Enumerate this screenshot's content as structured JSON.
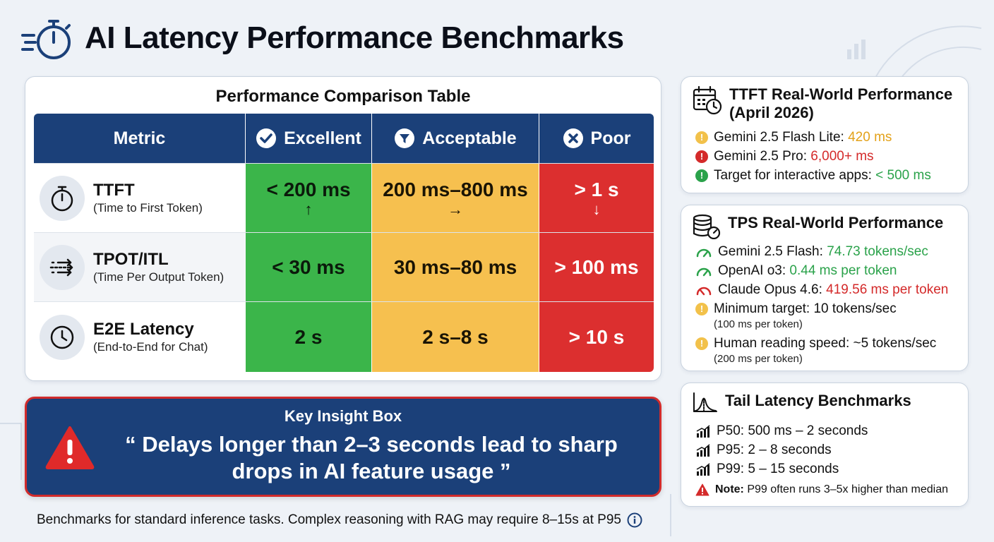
{
  "header": {
    "title": "AI Latency Performance Benchmarks",
    "icon": "stopwatch-icon"
  },
  "table": {
    "title": "Performance Comparison Table",
    "headers": {
      "metric": "Metric",
      "excellent": "Excellent",
      "acceptable": "Acceptable",
      "poor": "Poor"
    },
    "rows": [
      {
        "name": "TTFT",
        "sub": "(Time to First Token)",
        "icon": "stopwatch-icon",
        "excellent": "< 200 ms",
        "excellent_arrow": "↑",
        "acceptable": "200 ms–800 ms",
        "acceptable_arrow": "→",
        "poor": "> 1 s",
        "poor_arrow": "↓"
      },
      {
        "name": "TPOT/ITL",
        "sub": "(Time Per Output Token)",
        "icon": "arrows-right-icon",
        "excellent": "< 30 ms",
        "acceptable": "30 ms–80 ms",
        "poor": "> 100 ms"
      },
      {
        "name": "E2E Latency",
        "sub": "(End-to-End for Chat)",
        "icon": "clock-icon",
        "excellent": "2 s",
        "acceptable": "2 s–8 s",
        "poor": "> 10 s"
      }
    ],
    "colors": {
      "header": "#1b4079",
      "excellent": "#3bb54a",
      "acceptable": "#f6c04f",
      "poor": "#dc2f2f"
    }
  },
  "insight": {
    "title": "Key Insight Box",
    "quote": "“ Delays longer than 2–3 seconds lead to sharp drops in AI feature usage ”",
    "icon": "warning-icon"
  },
  "footnote": "Benchmarks for standard inference tasks. Complex reasoning with RAG may require 8–15s at P95",
  "ttft_panel": {
    "title": "TTFT Real-World Performance (April 2026)",
    "items": [
      {
        "label": "Gemini 2.5 Flash Lite:",
        "value": "420 ms",
        "status": "warning"
      },
      {
        "label": "Gemini 2.5 Pro:",
        "value": "6,000+ ms",
        "status": "error"
      },
      {
        "label": "Target for interactive apps:",
        "value": "< 500 ms",
        "status": "ok"
      }
    ]
  },
  "tps_panel": {
    "title": "TPS Real-World Performance",
    "items": [
      {
        "label": "Gemini 2.5 Flash:",
        "value": "74.73 tokens/sec"
      },
      {
        "label": "OpenAI o3:",
        "value": "0.44 ms per token"
      },
      {
        "label": "Claude Opus 4.6:",
        "value": "419.56 ms per token"
      },
      {
        "label": "Minimum target: 10 tokens/sec",
        "sub": "(100 ms per token)"
      },
      {
        "label": "Human reading speed: ~5 tokens/sec",
        "sub": "(200 ms per token)"
      }
    ]
  },
  "tail_panel": {
    "title": "Tail Latency Benchmarks",
    "items": [
      "P50: 500 ms – 2 seconds",
      "P95: 2 – 8 seconds",
      "P99: 5 – 15 seconds"
    ],
    "note_label": "Note:",
    "note_text": "P99 often runs 3–5x higher than median"
  }
}
